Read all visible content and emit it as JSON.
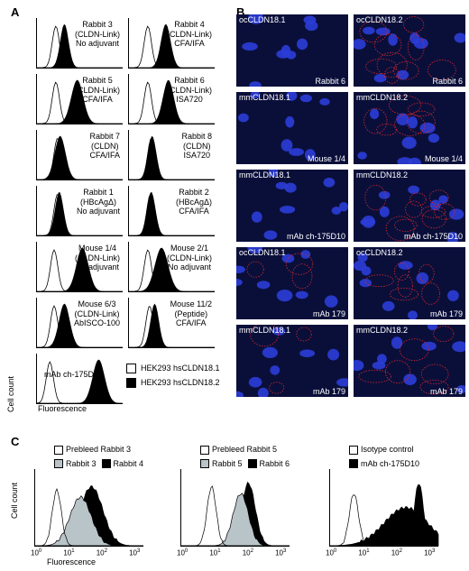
{
  "panel_a": {
    "label": "A",
    "histograms": [
      {
        "lines": [
          "Rabbit 3",
          "(CLDN-Link)",
          "No adjuvant"
        ],
        "neg_peak": 0.22,
        "pos_peak": 0.32,
        "pos_width": 0.07
      },
      {
        "lines": [
          "Rabbit 4",
          "(CLDN-Link)",
          "CFA/IFA"
        ],
        "neg_peak": 0.22,
        "pos_peak": 0.43,
        "pos_width": 0.08
      },
      {
        "lines": [
          "Rabbit 5",
          "(CLDN-Link)",
          "CFA/IFA"
        ],
        "neg_peak": 0.22,
        "pos_peak": 0.47,
        "pos_width": 0.1
      },
      {
        "lines": [
          "Rabbit 6",
          "(CLDN-Link)",
          "ISA720"
        ],
        "neg_peak": 0.22,
        "pos_peak": 0.46,
        "pos_width": 0.09
      },
      {
        "lines": [
          "Rabbit 7",
          "(CLDN)",
          "CFA/IFA"
        ],
        "neg_peak": 0.24,
        "pos_peak": 0.27,
        "pos_width": 0.09
      },
      {
        "lines": [
          "Rabbit 8",
          "(CLDN)",
          "ISA720"
        ],
        "neg_peak": 0.26,
        "pos_peak": 0.27,
        "pos_width": 0.07
      },
      {
        "lines": [
          "Rabbit 1",
          "(HBcAgΔ)",
          "No adjuvant"
        ],
        "neg_peak": 0.24,
        "pos_peak": 0.26,
        "pos_width": 0.07
      },
      {
        "lines": [
          "Rabbit 2",
          "(HBcAgΔ)",
          "CFA/IFA"
        ],
        "neg_peak": 0.25,
        "pos_peak": 0.26,
        "pos_width": 0.07
      },
      {
        "lines": [
          "Mouse 1/4",
          "(CLDN-Link)",
          "No adjuvant"
        ],
        "neg_peak": 0.2,
        "pos_peak": 0.53,
        "pos_width": 0.1
      },
      {
        "lines": [
          "Mouse 2/1",
          "(CLDN-Link)",
          "No adjuvant"
        ],
        "neg_peak": 0.22,
        "pos_peak": 0.38,
        "pos_width": 0.11
      },
      {
        "lines": [
          "Mouse 6/3",
          "(CLDN-Link)",
          "AbISCO-100"
        ],
        "neg_peak": 0.2,
        "pos_peak": 0.32,
        "pos_width": 0.09
      },
      {
        "lines": [
          "Mouse 11/2",
          "(Peptide)",
          "CFA/IFA"
        ],
        "neg_peak": 0.24,
        "pos_peak": 0.3,
        "pos_width": 0.07
      },
      {
        "lines": [
          "mAb ch-175D10"
        ],
        "neg_peak": 0.15,
        "pos_peak": 0.72,
        "pos_width": 0.1
      }
    ],
    "legend": [
      "HEK293 hsCLDN18.1",
      "HEK293 hsCLDN18.2"
    ],
    "ylabel": "Cell count",
    "xlabel": "Fluorescence"
  },
  "panel_b": {
    "label": "B",
    "images": [
      {
        "tl": "ocCLDN18.1",
        "br": "Rabbit 6",
        "red": 0
      },
      {
        "tl": "ocCLDN18.2",
        "br": "Rabbit 6",
        "red": 3
      },
      {
        "tl": "mmCLDN18.1",
        "br": "",
        "red": 0
      },
      {
        "tl": "mmCLDN18.2",
        "br": "Mouse 1/4",
        "red": 2
      },
      {
        "tl": "",
        "br": "Mouse 1/4",
        "red": 0
      },
      {
        "tl": "mmCLDN18.1",
        "br": "mAb ch-175D10",
        "red": 0
      },
      {
        "tl": "mmCLDN18.2",
        "br": "mAb ch-175D10",
        "red": 3
      },
      {
        "tl": "ocCLDN18.1",
        "br": "mAb 179",
        "red": 1
      },
      {
        "tl": "ocCLDN18.2",
        "br": "mAb 179",
        "red": 2
      },
      {
        "tl": "mmCLDN18.1",
        "br": "mAb 179",
        "red": 1
      },
      {
        "tl": "mmCLDN18.2",
        "br": "mAb 179",
        "red": 2
      }
    ]
  },
  "panel_c": {
    "label": "C",
    "ylabel": "Cell count",
    "xlabel": "Fluorescence",
    "ticks": [
      "10",
      "10",
      "10",
      "10"
    ],
    "tick_exps": [
      "0",
      "1",
      "2",
      "3"
    ],
    "plots": [
      {
        "legend": [
          {
            "text": "Prebleed Rabbit 3",
            "fill": "#ffffff"
          },
          {
            "text": "Rabbit 3",
            "fill": "#b9c4c8"
          },
          {
            "text": "Rabbit 4",
            "fill": "#000000"
          }
        ]
      },
      {
        "legend": [
          {
            "text": "Prebleed Rabbit 5",
            "fill": "#ffffff"
          },
          {
            "text": "Rabbit 5",
            "fill": "#b9c4c8"
          },
          {
            "text": "Rabbit 6",
            "fill": "#000000"
          }
        ]
      },
      {
        "legend": [
          {
            "text": "Isotype control",
            "fill": "#ffffff"
          },
          {
            "text": "mAb ch-175D10",
            "fill": "#000000"
          }
        ]
      }
    ]
  }
}
